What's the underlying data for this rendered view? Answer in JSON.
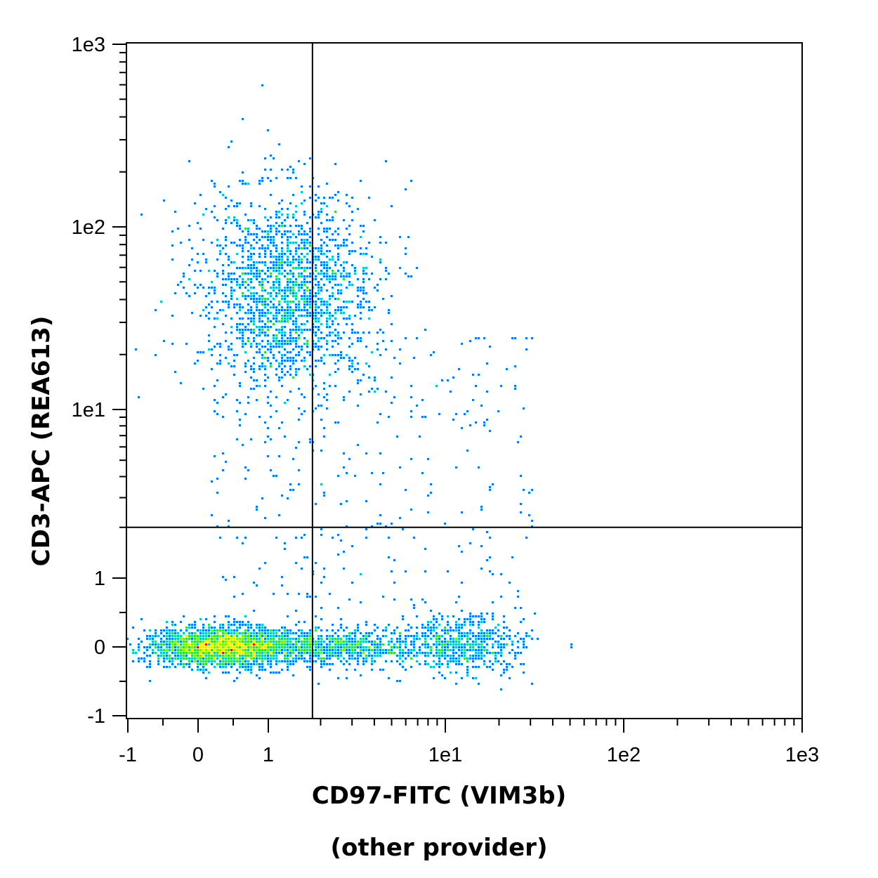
{
  "chart_data": {
    "type": "scatter",
    "subtype": "flow-cytometry-density-dot-plot",
    "xlabel": "CD97-FITC (VIM3b)",
    "xlabel_line2": "(other provider)",
    "ylabel": "CD3-APC (REA613)",
    "x_scale": "biexponential (linear near 0, log above)",
    "y_scale": "biexponential (linear near 0, log above)",
    "xlim": [
      -1,
      1000
    ],
    "ylim": [
      -1,
      1000
    ],
    "x_ticks": [
      "-1",
      "0",
      "1",
      "1e1",
      "1e2",
      "1e3"
    ],
    "y_ticks": [
      "-1",
      "0",
      "1",
      "1e1",
      "1e2",
      "1e3"
    ],
    "x_tick_values": [
      -1,
      0,
      1,
      10,
      100,
      1000
    ],
    "y_tick_values": [
      -1,
      0,
      1,
      10,
      100,
      1000
    ],
    "quadrant_gate": {
      "x": 1.8,
      "y": 2
    },
    "color_scale": [
      "#0000cc",
      "#0078ff",
      "#00c8c8",
      "#32dc32",
      "#78f000",
      "#ffe600",
      "#ff0000"
    ],
    "grid": false,
    "legend": "none",
    "populations": [
      {
        "description": "CD3+ CD97 low-intermediate",
        "x_center": 1.3,
        "y_center": 45,
        "relative_size": 0.36
      },
      {
        "description": "CD3- CD97 negative (densest)",
        "x_center": 0.35,
        "y_center": 0,
        "relative_size": 0.4
      },
      {
        "description": "CD3- CD97 intermediate",
        "x_center": 2.5,
        "y_center": 0,
        "relative_size": 0.14
      },
      {
        "description": "CD3- CD97 positive",
        "x_center": 13,
        "y_center": 0.05,
        "relative_size": 0.1
      }
    ]
  }
}
